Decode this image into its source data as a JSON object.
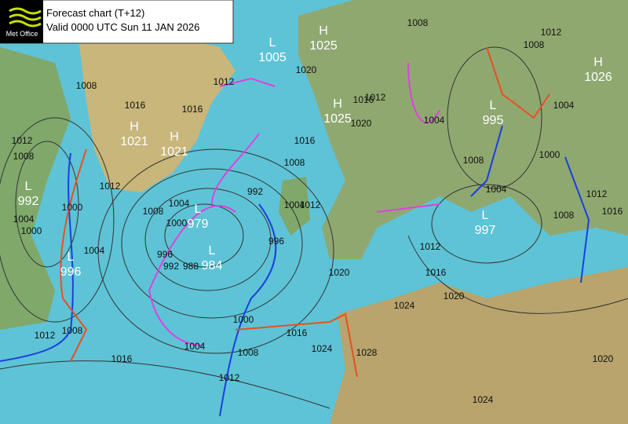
{
  "header": {
    "logo": "Met Office",
    "title": "Forecast chart (T+12)",
    "subtitle": "Valid 0000 UTC Sun 11 JAN 2026"
  },
  "centres": [
    {
      "type": "L",
      "value": "1005"
    },
    {
      "type": "H",
      "value": "1025"
    },
    {
      "type": "H",
      "value": "1025"
    },
    {
      "type": "L",
      "value": "995"
    },
    {
      "type": "H",
      "value": "1026"
    },
    {
      "type": "H",
      "value": "1021"
    },
    {
      "type": "H",
      "value": "1021"
    },
    {
      "type": "L",
      "value": "992"
    },
    {
      "type": "L",
      "value": "979"
    },
    {
      "type": "L",
      "value": "984"
    },
    {
      "type": "L",
      "value": "997"
    },
    {
      "type": "L",
      "value": "996"
    }
  ],
  "isobar_labels": [
    "1008",
    "1016",
    "1016",
    "1012",
    "1020",
    "1016",
    "1008",
    "1004",
    "1012",
    "996",
    "992",
    "1004",
    "1008",
    "1000",
    "996",
    "992",
    "988",
    "1012",
    "1012",
    "1008",
    "1004",
    "1000",
    "1000",
    "1004",
    "1012",
    "1008",
    "1016",
    "1004",
    "1000",
    "1008",
    "1012",
    "1016",
    "1024",
    "1028",
    "1020",
    "1024",
    "1012",
    "1016",
    "1020",
    "1004",
    "1008",
    "1012",
    "1016",
    "1020",
    "1008",
    "1004",
    "1008",
    "1012",
    "1004",
    "1000",
    "1008",
    "1012",
    "1016",
    "1020",
    "1024"
  ]
}
